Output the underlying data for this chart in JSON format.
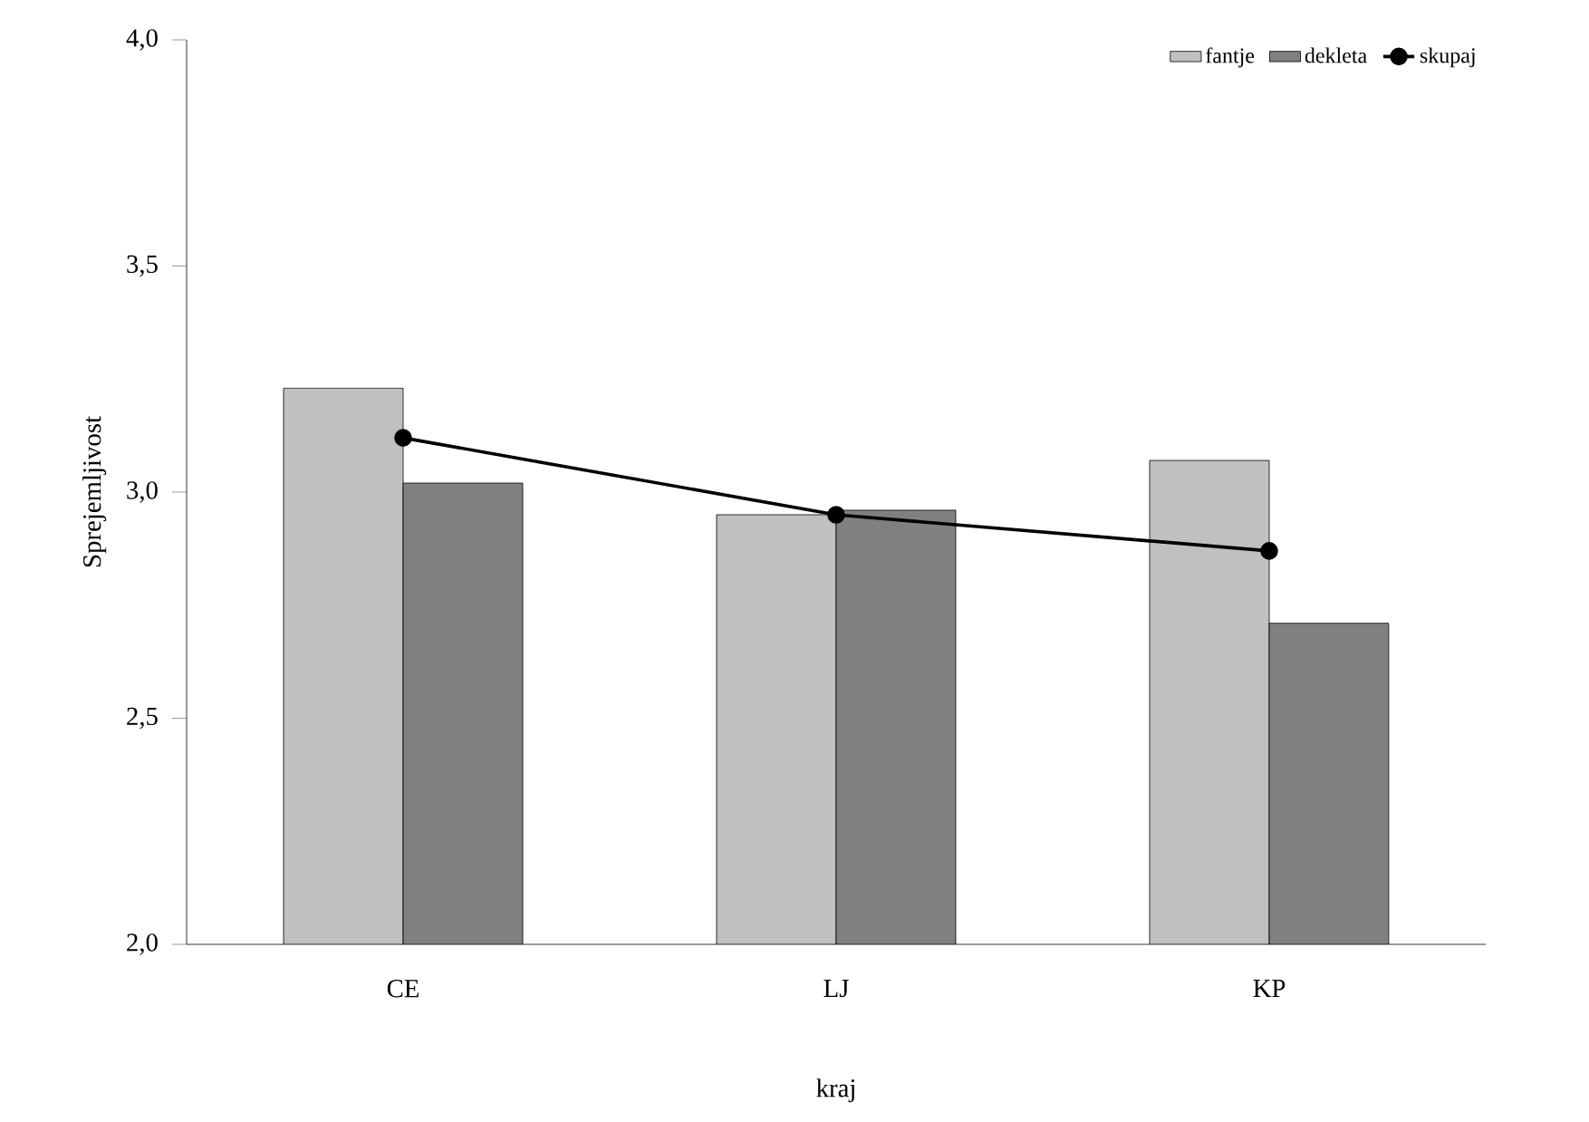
{
  "chart_data": {
    "type": "bar",
    "xlabel": "kraj",
    "ylabel": "Sprejemljivost",
    "categories": [
      "CE",
      "LJ",
      "KP"
    ],
    "series": [
      {
        "name": "fantje",
        "color": "#c0c0c0",
        "values": [
          3.23,
          2.95,
          3.07
        ]
      },
      {
        "name": "dekleta",
        "color": "#808080",
        "values": [
          3.02,
          2.96,
          2.71
        ]
      },
      {
        "name": "skupaj",
        "type": "line",
        "color": "#000000",
        "marker": "circle",
        "values": [
          3.12,
          2.95,
          2.87
        ]
      }
    ],
    "ylim": [
      2,
      4
    ],
    "yticks": [
      {
        "value": 2,
        "label": "2,0"
      },
      {
        "value": 2.5,
        "label": "2,5"
      },
      {
        "value": 3,
        "label": "3,0"
      },
      {
        "value": 3.5,
        "label": "3,5"
      },
      {
        "value": 4,
        "label": "4,0"
      }
    ],
    "legend": "top right"
  }
}
